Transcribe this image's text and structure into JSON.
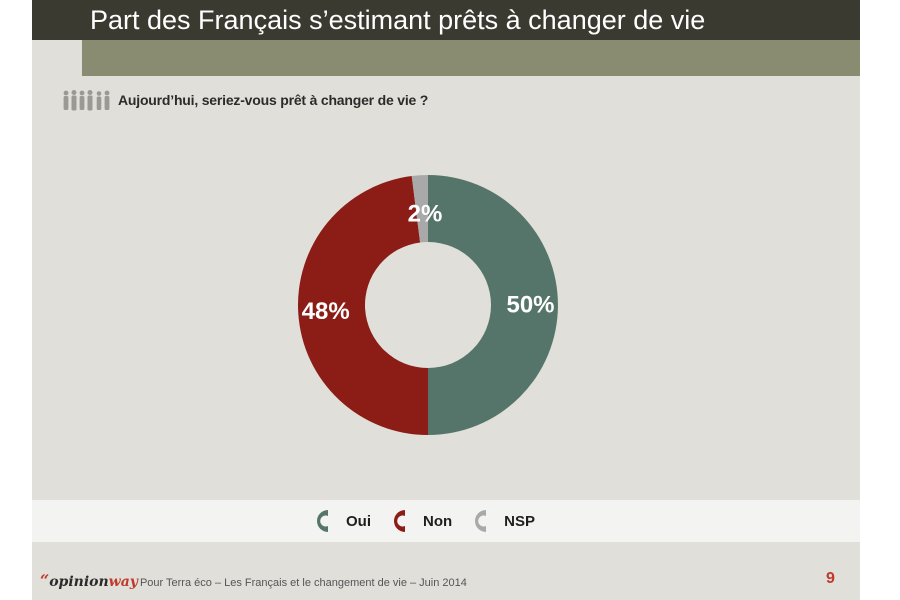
{
  "slide": {
    "title": "Part des Français s’estimant prêts à changer de vie",
    "question": "Aujourd’hui, seriez-vous prêt à changer de vie ?",
    "footer": {
      "brand_quote": "“",
      "brand_opinion": "opinion",
      "brand_way": "way",
      "source": "Pour Terra éco – Les Français et le changement de vie – Juin 2014",
      "page_number": "9"
    }
  },
  "chart_data": {
    "type": "pie",
    "variant": "donut",
    "title": "",
    "categories": [
      "Oui",
      "Non",
      "NSP"
    ],
    "values": [
      50,
      48,
      2
    ],
    "data_labels": [
      "50%",
      "48%",
      "2%"
    ],
    "colors": [
      "#56756a",
      "#8b1c16",
      "#a9a9a9"
    ],
    "legend_position": "bottom"
  }
}
